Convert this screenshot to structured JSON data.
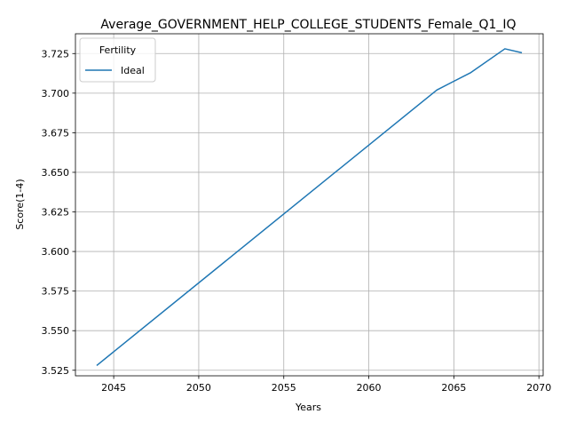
{
  "chart_data": {
    "type": "line",
    "title": "Average_GOVERNMENT_HELP_COLLEGE_STUDENTS_Female_Q1_IQ",
    "xlabel": "Years",
    "ylabel": "Score(1-4)",
    "xlim": [
      2042.75,
      2070.25
    ],
    "ylim": [
      3.5215,
      3.7375
    ],
    "x_ticks": [
      2045,
      2050,
      2055,
      2060,
      2065,
      2070
    ],
    "y_ticks": [
      3.525,
      3.55,
      3.575,
      3.6,
      3.625,
      3.65,
      3.675,
      3.7,
      3.725
    ],
    "y_tick_labels": [
      "3.525",
      "3.550",
      "3.575",
      "3.600",
      "3.625",
      "3.650",
      "3.675",
      "3.700",
      "3.725"
    ],
    "grid": true,
    "legend": {
      "title": "Fertility",
      "placement": "top-left"
    },
    "series": [
      {
        "name": "Ideal",
        "color": "#1f77b4",
        "x": [
          2044,
          2064,
          2066,
          2068,
          2069
        ],
        "y": [
          3.528,
          3.702,
          3.713,
          3.728,
          3.7255
        ]
      }
    ]
  }
}
